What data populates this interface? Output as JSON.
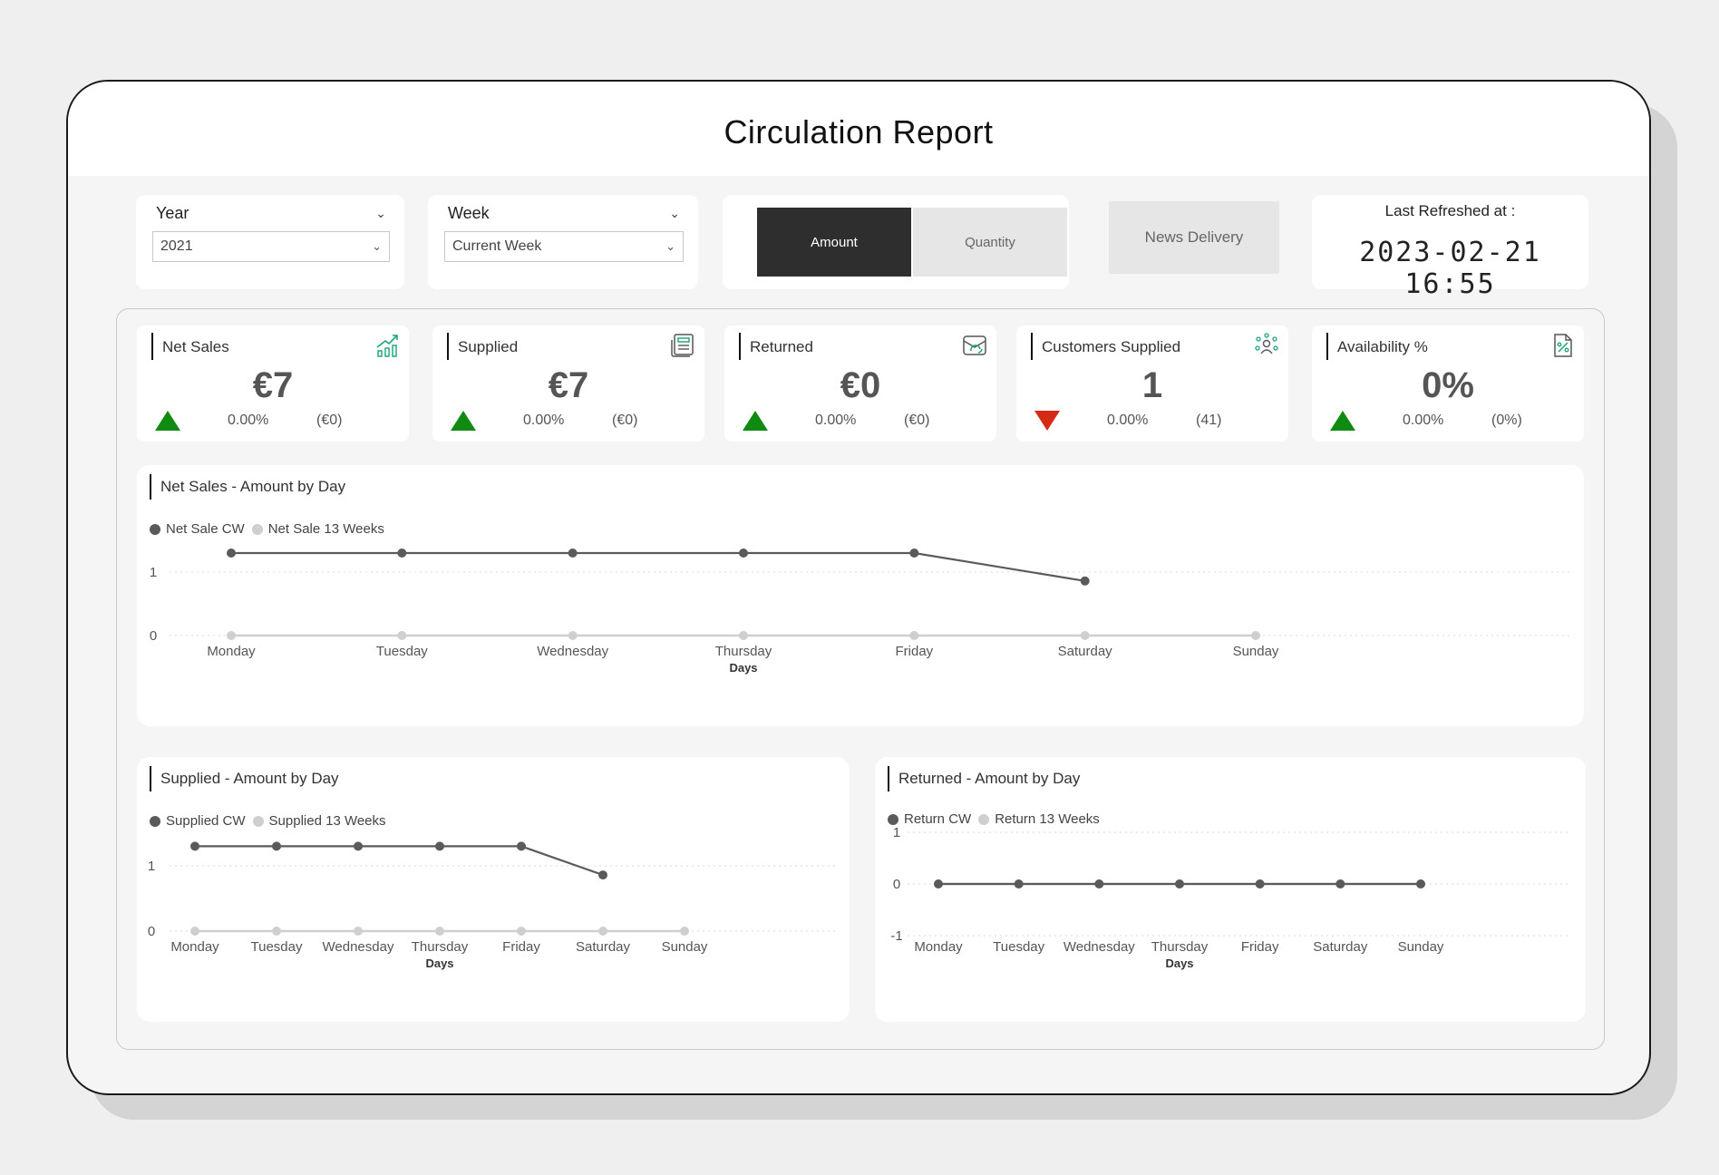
{
  "title": "Circulation Report",
  "filters": {
    "year": {
      "label": "Year",
      "value": "2021"
    },
    "week": {
      "label": "Week",
      "value": "Current Week"
    }
  },
  "toggle": {
    "active": "Amount",
    "inactive": "Quantity"
  },
  "news_delivery": "News Delivery",
  "refresh": {
    "label": "Last Refreshed at :",
    "value": "2023-02-21 16:55"
  },
  "kpis": [
    {
      "label": "Net Sales",
      "value": "€7",
      "pct": "0.00%",
      "prev": "(€0)",
      "trend": "up",
      "icon": "growth-chart-icon"
    },
    {
      "label": "Supplied",
      "value": "€7",
      "pct": "0.00%",
      "prev": "(€0)",
      "trend": "up",
      "icon": "newspaper-icon"
    },
    {
      "label": "Returned",
      "value": "€0",
      "pct": "0.00%",
      "prev": "(€0)",
      "trend": "up",
      "icon": "return-box-icon"
    },
    {
      "label": "Customers Supplied",
      "value": "1",
      "pct": "0.00%",
      "prev": "(41)",
      "trend": "down",
      "icon": "people-network-icon"
    },
    {
      "label": "Availability %",
      "value": "0%",
      "pct": "0.00%",
      "prev": "(0%)",
      "trend": "up",
      "icon": "percent-document-icon"
    }
  ],
  "colors": {
    "up": "#118a11",
    "down": "#d42a16",
    "cw": "#5a5a5a",
    "weeks13": "#cfcfcf",
    "accent_icon": "#1aa37a"
  },
  "charts": {
    "net_sales": {
      "title": "Net Sales - Amount by Day",
      "legend_cw": "Net Sale CW",
      "legend_13": "Net Sale 13 Weeks",
      "xlabel": "Days"
    },
    "supplied": {
      "title": "Supplied - Amount by Day",
      "legend_cw": "Supplied CW",
      "legend_13": "Supplied 13 Weeks",
      "xlabel": "Days"
    },
    "returned": {
      "title": "Returned - Amount by Day",
      "legend_cw": "Return CW",
      "legend_13": "Return 13 Weeks",
      "xlabel": "Days"
    }
  },
  "chart_data": [
    {
      "type": "line",
      "title": "Net Sales - Amount by Day",
      "categories": [
        "Monday",
        "Tuesday",
        "Wednesday",
        "Thursday",
        "Friday",
        "Saturday",
        "Sunday"
      ],
      "xlabel": "Days",
      "yticks": [
        0,
        1
      ],
      "series": [
        {
          "name": "Net Sale CW",
          "values": [
            1.3,
            1.3,
            1.3,
            1.3,
            1.3,
            0.86,
            null
          ]
        },
        {
          "name": "Net Sale 13 Weeks",
          "values": [
            0,
            0,
            0,
            0,
            0,
            0,
            0
          ]
        }
      ]
    },
    {
      "type": "line",
      "title": "Supplied - Amount by Day",
      "categories": [
        "Monday",
        "Tuesday",
        "Wednesday",
        "Thursday",
        "Friday",
        "Saturday",
        "Sunday"
      ],
      "xlabel": "Days",
      "yticks": [
        0,
        1
      ],
      "series": [
        {
          "name": "Supplied CW",
          "values": [
            1.3,
            1.3,
            1.3,
            1.3,
            1.3,
            0.86,
            null
          ]
        },
        {
          "name": "Supplied 13 Weeks",
          "values": [
            0,
            0,
            0,
            0,
            0,
            0,
            0
          ]
        }
      ]
    },
    {
      "type": "line",
      "title": "Returned - Amount by Day",
      "categories": [
        "Monday",
        "Tuesday",
        "Wednesday",
        "Thursday",
        "Friday",
        "Saturday",
        "Sunday"
      ],
      "xlabel": "Days",
      "yticks": [
        -1,
        0,
        1
      ],
      "series": [
        {
          "name": "Return CW",
          "values": [
            0,
            0,
            0,
            0,
            0,
            0,
            0
          ]
        },
        {
          "name": "Return 13 Weeks",
          "values": [
            0,
            0,
            0,
            0,
            0,
            0,
            0
          ]
        }
      ]
    }
  ]
}
